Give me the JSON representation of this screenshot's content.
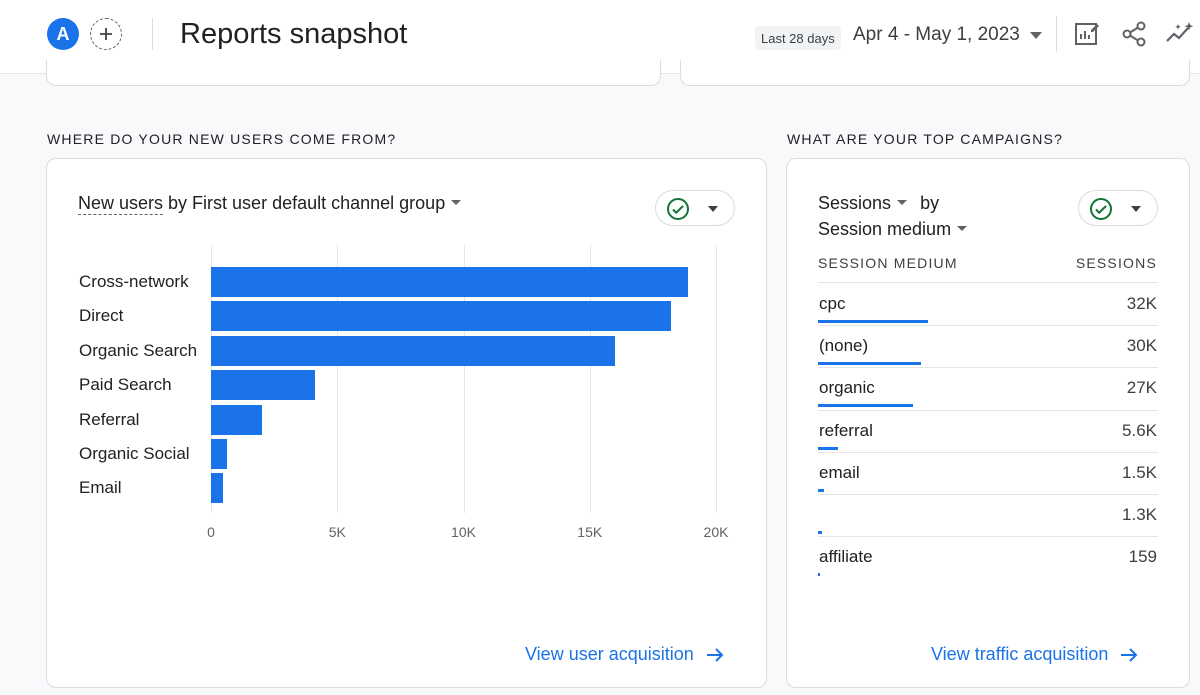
{
  "header": {
    "avatar_letter": "A",
    "title": "Reports snapshot",
    "date_chip": "Last 28 days",
    "date_range": "Apr 4 - May 1, 2023"
  },
  "left_section": {
    "title": "WHERE DO YOUR NEW USERS COME FROM?",
    "metric": "New users",
    "dimension_text": "by First user default channel group",
    "link": "View user acquisition"
  },
  "right_section": {
    "title": "WHAT ARE YOUR TOP CAMPAIGNS?",
    "metric": "Sessions",
    "by": "by",
    "dimension": "Session medium",
    "col_medium": "SESSION MEDIUM",
    "col_sessions": "SESSIONS",
    "rows": [
      {
        "label": "cpc",
        "value": "32K",
        "fraction": 1.0
      },
      {
        "label": "(none)",
        "value": "30K",
        "fraction": 0.94
      },
      {
        "label": "organic",
        "value": "27K",
        "fraction": 0.86
      },
      {
        "label": "referral",
        "value": "5.6K",
        "fraction": 0.18
      },
      {
        "label": "email",
        "value": "1.5K",
        "fraction": 0.05
      },
      {
        "label": "",
        "value": "1.3K",
        "fraction": 0.04
      },
      {
        "label": "affiliate",
        "value": "159",
        "fraction": 0.005
      }
    ],
    "link": "View traffic acquisition"
  },
  "chart_data": {
    "type": "bar",
    "orientation": "horizontal",
    "categories": [
      "Cross-network",
      "Direct",
      "Organic Search",
      "Paid Search",
      "Referral",
      "Organic Social",
      "Email"
    ],
    "values": [
      18900,
      18200,
      16000,
      4100,
      2000,
      650,
      480
    ],
    "xlim": [
      0,
      20000
    ],
    "ticks": [
      0,
      5000,
      10000,
      15000,
      20000
    ],
    "tick_labels": [
      "0",
      "5K",
      "10K",
      "15K",
      "20K"
    ],
    "grid": true,
    "color": "#1a73e8"
  }
}
